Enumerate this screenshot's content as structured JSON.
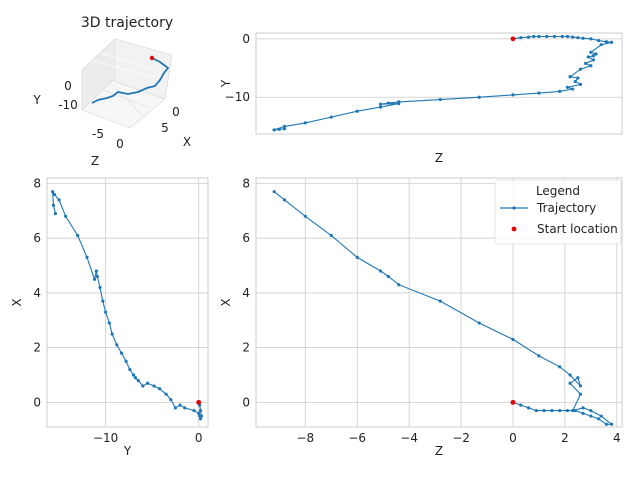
{
  "figure": {
    "background": "#ffffff",
    "grid_color": "#cccccc",
    "axes_edge_color": "#cccccc",
    "trajectory_color": "#1f77b4",
    "start_color": "#e00000"
  },
  "chart_data": [
    {
      "id": "panel-3d",
      "type": "line",
      "projection": "3d",
      "title": "3D trajectory",
      "axis_labels": {
        "x": "X",
        "y": "Y",
        "z": "Z"
      },
      "tick_labels": {
        "y": [
          "0",
          "-10"
        ],
        "z": [
          "-5",
          "0"
        ],
        "x": [
          "0",
          "5"
        ]
      },
      "series": [
        {
          "name": "Trajectory",
          "mark": "line"
        },
        {
          "name": "Start location",
          "mark": "point"
        }
      ]
    },
    {
      "id": "panel-z-y",
      "type": "line",
      "xlabel": "Z",
      "ylabel": "Y",
      "xlim": [
        -9.9,
        4.2
      ],
      "ylim": [
        -16.3,
        1.0
      ],
      "xticks": [],
      "yticks": [
        0,
        -10
      ],
      "grid": true,
      "series": [
        {
          "name": "Trajectory",
          "x": [
            0,
            0.3,
            0.6,
            0.8,
            1.0,
            1.3,
            1.6,
            1.9,
            2.1,
            2.3,
            2.5,
            2.7,
            3.0,
            3.3,
            3.6,
            3.8,
            3.4,
            3.0,
            3.2,
            3.1,
            2.9,
            3.1,
            2.8,
            3.0,
            2.6,
            2.2,
            2.5,
            2.4,
            2.6,
            2.1,
            2.3,
            1.8,
            1.0,
            0.0,
            -1.3,
            -2.8,
            -4.4,
            -4.8,
            -5.1,
            -4.4,
            -5.1,
            -6.0,
            -7.0,
            -8.0,
            -8.8,
            -9.2,
            -9.0,
            -8.8,
            -9.2
          ],
          "y": [
            0,
            0.2,
            0.3,
            0.4,
            0.4,
            0.4,
            0.4,
            0.4,
            0.4,
            0.3,
            0.2,
            0.1,
            0.0,
            -0.3,
            -0.5,
            -0.6,
            -1.0,
            -2.3,
            -2.6,
            -2.9,
            -3.1,
            -3.6,
            -4.2,
            -4.6,
            -5.2,
            -6.5,
            -6.7,
            -7.3,
            -7.8,
            -8.3,
            -8.6,
            -9.0,
            -9.3,
            -9.6,
            -10.0,
            -10.4,
            -10.8,
            -11.0,
            -11.2,
            -11.1,
            -11.7,
            -12.4,
            -13.4,
            -14.4,
            -15.0,
            -15.6,
            -15.5,
            -15.4,
            -15.6
          ]
        },
        {
          "name": "Start location",
          "x": [
            0
          ],
          "y": [
            0
          ]
        }
      ]
    },
    {
      "id": "panel-y-x",
      "type": "line",
      "xlabel": "Y",
      "ylabel": "X",
      "xlim": [
        -16.3,
        1.0
      ],
      "ylim": [
        -0.9,
        8.2
      ],
      "xticks": [
        -10,
        0
      ],
      "yticks": [
        0,
        2,
        4,
        6,
        8
      ],
      "grid": true,
      "series": [
        {
          "name": "Trajectory",
          "x": [
            0,
            0.1,
            0.2,
            0.3,
            0.2,
            0.1,
            0.0,
            -0.5,
            -1.5,
            -2.0,
            -2.5,
            -3.0,
            -3.5,
            -4.2,
            -4.8,
            -5.5,
            -6.0,
            -6.5,
            -6.8,
            -7.0,
            -7.4,
            -7.8,
            -8.3,
            -8.8,
            -9.3,
            -9.6,
            -10.0,
            -10.3,
            -10.6,
            -10.9,
            -11.0,
            -11.2,
            -12.0,
            -13.0,
            -14.3,
            -15.0,
            -15.5,
            -15.7,
            -15.6,
            -15.4
          ],
          "y": [
            0,
            -0.1,
            -0.3,
            -0.5,
            -0.6,
            -0.5,
            -0.4,
            -0.3,
            -0.2,
            -0.1,
            -0.2,
            0.1,
            0.3,
            0.5,
            0.6,
            0.7,
            0.6,
            0.8,
            0.9,
            1.0,
            1.2,
            1.5,
            1.8,
            2.1,
            2.5,
            2.9,
            3.3,
            3.7,
            4.2,
            4.6,
            4.8,
            4.5,
            5.3,
            6.1,
            6.8,
            7.4,
            7.6,
            7.7,
            7.2,
            6.9
          ]
        },
        {
          "name": "Start location",
          "x": [
            0
          ],
          "y": [
            0
          ]
        }
      ]
    },
    {
      "id": "panel-z-x",
      "type": "line",
      "xlabel": "Z",
      "ylabel": "X",
      "xlim": [
        -9.9,
        4.2
      ],
      "ylim": [
        -0.9,
        8.2
      ],
      "xticks": [
        -8,
        -6,
        -4,
        -2,
        0,
        2,
        4
      ],
      "yticks": [
        0,
        2,
        4,
        6,
        8
      ],
      "grid": true,
      "legend": {
        "title": "Legend",
        "placement": "top-right",
        "entries": [
          {
            "label": "Trajectory",
            "mark": "line"
          },
          {
            "label": "Start location",
            "mark": "point"
          }
        ]
      },
      "series": [
        {
          "name": "Trajectory",
          "x": [
            0,
            0.3,
            0.6,
            0.9,
            1.2,
            1.5,
            1.8,
            2.1,
            2.4,
            2.7,
            3.0,
            3.3,
            3.6,
            3.8,
            3.4,
            3.0,
            2.7,
            2.3,
            2.6,
            2.2,
            2.5,
            2.6,
            2.2,
            1.8,
            1.0,
            0.0,
            -1.3,
            -2.8,
            -4.4,
            -4.8,
            -5.1,
            -6.0,
            -7.0,
            -8.0,
            -8.8,
            -9.2
          ],
          "y": [
            0,
            -0.1,
            -0.2,
            -0.3,
            -0.3,
            -0.3,
            -0.3,
            -0.3,
            -0.3,
            -0.4,
            -0.5,
            -0.6,
            -0.8,
            -0.8,
            -0.5,
            -0.3,
            -0.2,
            -0.3,
            0.3,
            0.7,
            0.9,
            0.6,
            1.0,
            1.3,
            1.7,
            2.3,
            2.9,
            3.7,
            4.3,
            4.6,
            4.8,
            5.3,
            6.1,
            6.8,
            7.4,
            7.7
          ]
        },
        {
          "name": "Start location",
          "x": [
            0
          ],
          "y": [
            0
          ]
        }
      ]
    }
  ]
}
